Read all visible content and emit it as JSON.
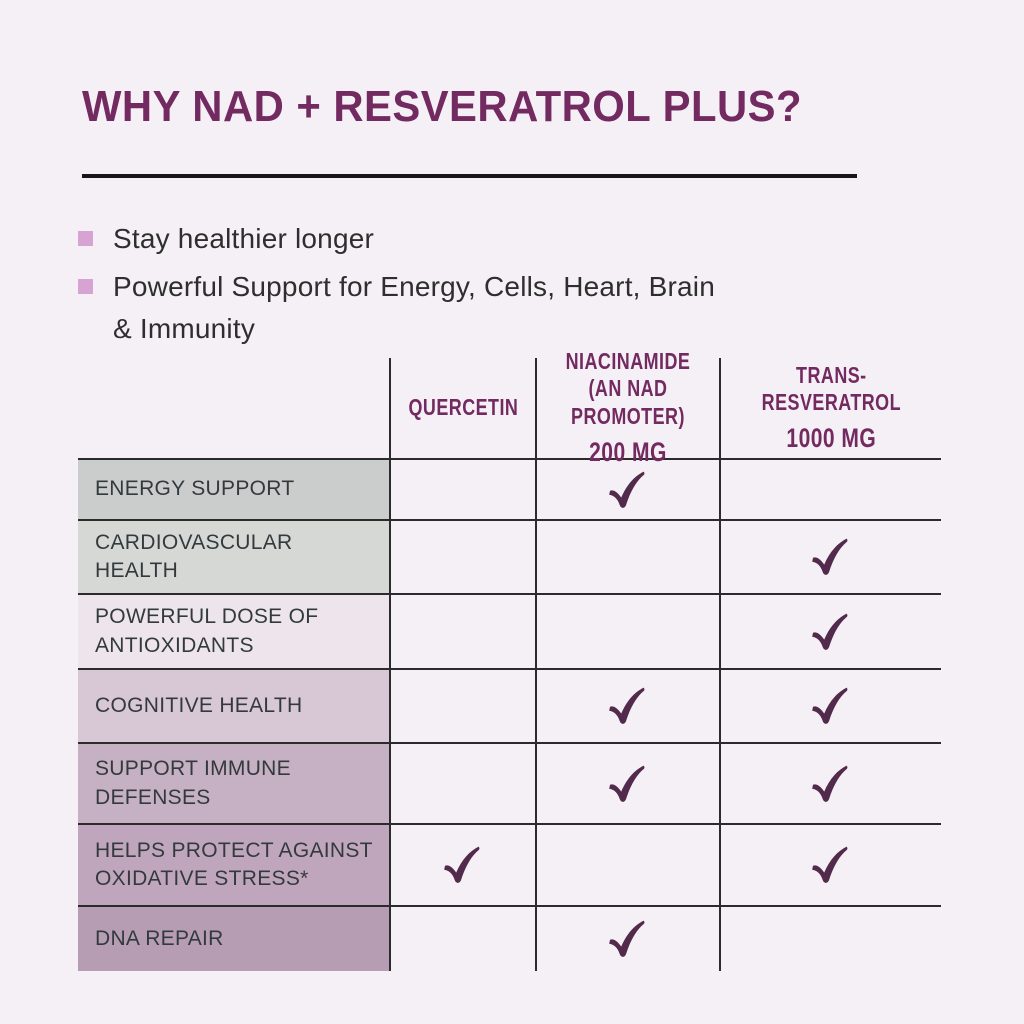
{
  "header": {
    "title": "WHY NAD + RESVERATROL PLUS?"
  },
  "bullets": [
    "Stay healthier longer",
    "Powerful Support for Energy, Cells, Heart, Brain\n& Immunity"
  ],
  "table": {
    "columns": [
      {
        "name": "QUERCETIN",
        "dose": ""
      },
      {
        "name": "NIACINAMIDE\n(AN NAD\nPROMOTER)",
        "dose": "200 MG"
      },
      {
        "name": "TRANS-\nRESVERATROL",
        "dose": "1000 MG"
      }
    ],
    "rows": [
      {
        "label": "ENERGY SUPPORT",
        "bg": "#cbcdcc",
        "checks": [
          false,
          true,
          false
        ]
      },
      {
        "label": "CARDIOVASCULAR\nHEALTH",
        "bg": "#d6d8d6",
        "checks": [
          false,
          false,
          true
        ]
      },
      {
        "label": "POWERFUL DOSE OF\nANTIOXIDANTS",
        "bg": "#ede5eb",
        "checks": [
          false,
          false,
          true
        ]
      },
      {
        "label": "COGNITIVE HEALTH",
        "bg": "#d8c7d5",
        "checks": [
          false,
          true,
          true
        ]
      },
      {
        "label": "SUPPORT IMMUNE\nDEFENSES",
        "bg": "#c6b0c4",
        "checks": [
          false,
          true,
          true
        ]
      },
      {
        "label": "HELPS PROTECT AGAINST\nOXIDATIVE STRESS*",
        "bg": "#c0a6bd",
        "checks": [
          true,
          false,
          true
        ]
      },
      {
        "label": "DNA REPAIR",
        "bg": "#b69db3",
        "checks": [
          false,
          true,
          false
        ]
      }
    ]
  },
  "colors": {
    "background": "#f5f0f5",
    "accent_purple": "#722a60",
    "check_plum": "#512a4c",
    "bullet_pink": "#d6a3d2",
    "grid_line": "#2b2b2b",
    "label_text": "#333a3d",
    "body_text": "#2e2e2e",
    "rule_black": "#161616",
    "row_backgrounds": [
      "#cbcdcc",
      "#d6d8d6",
      "#ede5eb",
      "#d8c7d5",
      "#c6b0c4",
      "#c0a6bd",
      "#b69db3"
    ]
  },
  "icons": {
    "check": "check-icon",
    "bullet": "square-bullet-icon"
  }
}
